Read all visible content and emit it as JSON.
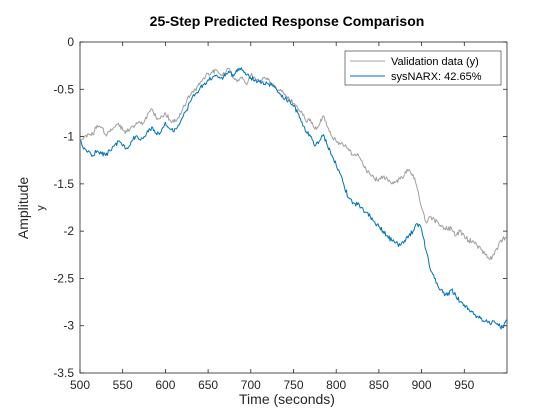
{
  "chart_data": {
    "type": "line",
    "title": "25-Step Predicted Response Comparison",
    "xlabel": "Time (seconds)",
    "ylabel": "Amplitude",
    "ylabel_sub": "y",
    "xlim": [
      500,
      1000
    ],
    "ylim": [
      -3.5,
      0
    ],
    "xticks": [
      500,
      550,
      600,
      650,
      700,
      750,
      800,
      850,
      900,
      950
    ],
    "yticks": [
      0,
      -0.5,
      -1,
      -1.5,
      -2,
      -2.5,
      -3,
      -3.5
    ],
    "grid": false,
    "legend_position": "top-right",
    "series": [
      {
        "name": "Validation data (y)",
        "color": "#a0a0a0",
        "x": [
          500,
          505,
          510,
          515,
          520,
          525,
          530,
          535,
          540,
          545,
          550,
          555,
          560,
          565,
          570,
          575,
          580,
          585,
          590,
          595,
          600,
          605,
          610,
          615,
          620,
          625,
          630,
          635,
          640,
          645,
          650,
          655,
          660,
          665,
          670,
          675,
          680,
          685,
          690,
          695,
          700,
          705,
          710,
          715,
          720,
          725,
          730,
          735,
          740,
          745,
          750,
          755,
          760,
          765,
          770,
          775,
          780,
          785,
          790,
          795,
          800,
          805,
          810,
          815,
          820,
          825,
          830,
          835,
          840,
          845,
          850,
          855,
          860,
          865,
          870,
          875,
          880,
          885,
          890,
          895,
          900,
          905,
          910,
          915,
          920,
          925,
          930,
          935,
          940,
          945,
          950,
          955,
          960,
          965,
          970,
          975,
          980,
          985,
          990,
          995,
          1000
        ],
        "y": [
          -1.06,
          -1.0,
          -0.97,
          -0.98,
          -0.88,
          -0.9,
          -0.98,
          -0.95,
          -0.9,
          -0.86,
          -0.93,
          -0.95,
          -0.9,
          -0.88,
          -0.85,
          -0.85,
          -0.75,
          -0.72,
          -0.82,
          -0.78,
          -0.75,
          -0.82,
          -0.85,
          -0.8,
          -0.72,
          -0.62,
          -0.55,
          -0.5,
          -0.45,
          -0.38,
          -0.33,
          -0.32,
          -0.3,
          -0.35,
          -0.33,
          -0.28,
          -0.38,
          -0.4,
          -0.37,
          -0.45,
          -0.35,
          -0.38,
          -0.42,
          -0.38,
          -0.4,
          -0.45,
          -0.5,
          -0.5,
          -0.55,
          -0.6,
          -0.65,
          -0.7,
          -0.75,
          -0.85,
          -0.82,
          -0.92,
          -0.88,
          -0.78,
          -0.9,
          -1.0,
          -1.05,
          -1.08,
          -1.1,
          -1.15,
          -1.2,
          -1.18,
          -1.25,
          -1.35,
          -1.4,
          -1.45,
          -1.45,
          -1.42,
          -1.45,
          -1.5,
          -1.48,
          -1.45,
          -1.4,
          -1.35,
          -1.4,
          -1.55,
          -1.75,
          -1.9,
          -1.85,
          -1.88,
          -1.92,
          -1.95,
          -1.98,
          -1.97,
          -2.05,
          -2.0,
          -2.05,
          -2.1,
          -2.1,
          -2.15,
          -2.2,
          -2.25,
          -2.3,
          -2.25,
          -2.15,
          -2.08,
          -2.08
        ]
      },
      {
        "name": "sysNARX: 42.65%",
        "color": "#0072bd",
        "x": [
          500,
          505,
          510,
          515,
          520,
          525,
          530,
          535,
          540,
          545,
          550,
          555,
          560,
          565,
          570,
          575,
          580,
          585,
          590,
          595,
          600,
          605,
          610,
          615,
          620,
          625,
          630,
          635,
          640,
          645,
          650,
          655,
          660,
          665,
          670,
          675,
          680,
          685,
          690,
          695,
          700,
          705,
          710,
          715,
          720,
          725,
          730,
          735,
          740,
          745,
          750,
          755,
          760,
          765,
          770,
          775,
          780,
          785,
          790,
          795,
          800,
          805,
          810,
          815,
          820,
          825,
          830,
          835,
          840,
          845,
          850,
          855,
          860,
          865,
          870,
          875,
          880,
          885,
          890,
          895,
          900,
          905,
          910,
          915,
          920,
          925,
          930,
          935,
          940,
          945,
          950,
          955,
          960,
          965,
          970,
          975,
          980,
          985,
          990,
          995,
          1000
        ],
        "y": [
          -1.05,
          -1.12,
          -1.15,
          -1.2,
          -1.15,
          -1.18,
          -1.2,
          -1.15,
          -1.1,
          -1.05,
          -1.1,
          -1.12,
          -1.05,
          -1.0,
          -1.03,
          -1.0,
          -0.95,
          -0.9,
          -0.98,
          -0.95,
          -0.85,
          -0.92,
          -0.95,
          -0.88,
          -0.8,
          -0.72,
          -0.62,
          -0.55,
          -0.5,
          -0.45,
          -0.4,
          -0.38,
          -0.35,
          -0.38,
          -0.36,
          -0.32,
          -0.36,
          -0.28,
          -0.3,
          -0.35,
          -0.38,
          -0.4,
          -0.42,
          -0.45,
          -0.44,
          -0.46,
          -0.5,
          -0.55,
          -0.6,
          -0.62,
          -0.68,
          -0.75,
          -0.85,
          -0.95,
          -1.0,
          -1.1,
          -1.05,
          -0.98,
          -1.1,
          -1.2,
          -1.3,
          -1.4,
          -1.55,
          -1.65,
          -1.7,
          -1.72,
          -1.75,
          -1.8,
          -1.85,
          -1.9,
          -1.95,
          -2.0,
          -2.05,
          -2.1,
          -2.12,
          -2.15,
          -2.1,
          -2.05,
          -2.0,
          -1.92,
          -1.98,
          -2.2,
          -2.4,
          -2.5,
          -2.6,
          -2.65,
          -2.68,
          -2.62,
          -2.68,
          -2.75,
          -2.78,
          -2.82,
          -2.85,
          -2.9,
          -2.92,
          -2.95,
          -2.98,
          -2.95,
          -3.0,
          -3.02,
          -2.95
        ]
      }
    ]
  }
}
